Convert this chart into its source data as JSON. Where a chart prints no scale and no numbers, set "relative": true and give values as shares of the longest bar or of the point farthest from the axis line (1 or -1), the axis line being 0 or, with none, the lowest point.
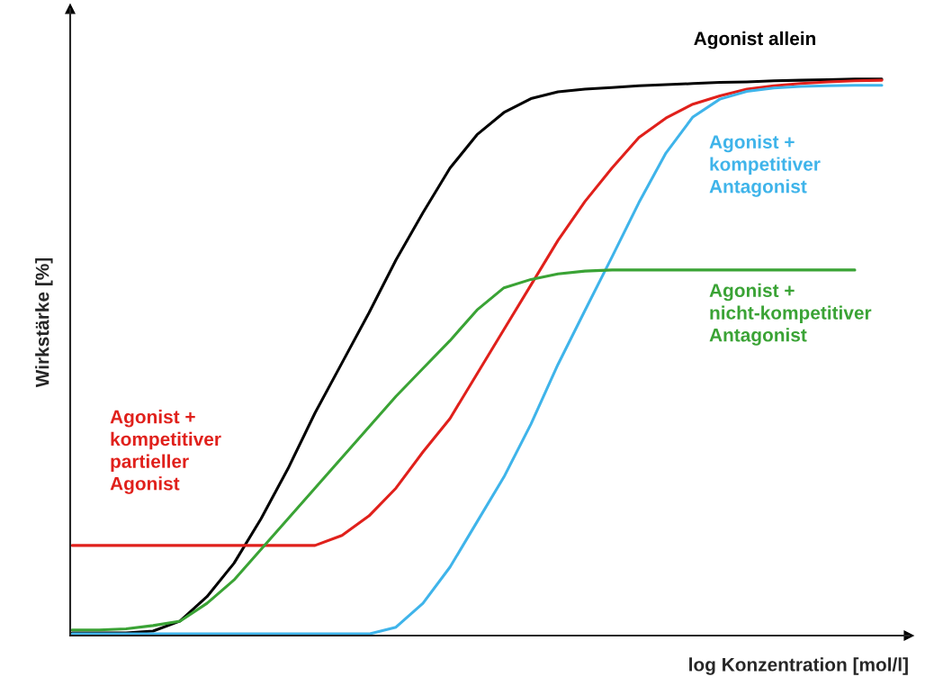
{
  "chart_data": {
    "type": "line",
    "relative": true,
    "xlabel": "log Konzentration [mol/l]",
    "ylabel": "Wirkstärke [%]",
    "categories": [
      null,
      null,
      null,
      null,
      null,
      null,
      null,
      null,
      null,
      null,
      null,
      null,
      null,
      null,
      null,
      null,
      null,
      null,
      null,
      null,
      null,
      null,
      null,
      null,
      null,
      null,
      null,
      null,
      null,
      null,
      null
    ],
    "series": [
      {
        "name": "Agonist allein",
        "color": "#000000",
        "values": [
          0.005,
          0.005,
          0.005,
          0.008,
          0.026,
          0.07,
          0.13,
          0.21,
          0.3,
          0.4,
          0.49,
          0.58,
          0.675,
          0.76,
          0.84,
          0.9,
          0.94,
          0.965,
          0.977,
          0.982,
          0.985,
          0.988,
          0.99,
          0.992,
          0.994,
          0.995,
          0.997,
          0.998,
          0.999,
          1,
          1
        ]
      },
      {
        "name": "Agonist +\nkompetitiver\npartieller\nAgonist",
        "color": "#e0201b",
        "values": [
          0.162,
          0.162,
          0.162,
          0.162,
          0.162,
          0.162,
          0.162,
          0.162,
          0.162,
          0.162,
          0.18,
          0.215,
          0.265,
          0.33,
          0.39,
          0.47,
          0.55,
          0.63,
          0.71,
          0.78,
          0.84,
          0.895,
          0.93,
          0.955,
          0.97,
          0.982,
          0.988,
          0.992,
          0.995,
          0.997,
          0.998
        ]
      },
      {
        "name": "Agonist +\nkompetitiver\nAntagonist",
        "color": "#3fb4ea",
        "values": [
          0.003,
          0.003,
          0.003,
          0.003,
          0.003,
          0.003,
          0.003,
          0.003,
          0.003,
          0.003,
          0.003,
          0.003,
          0.015,
          0.058,
          0.123,
          0.204,
          0.285,
          0.38,
          0.487,
          0.584,
          0.68,
          0.778,
          0.867,
          0.932,
          0.964,
          0.978,
          0.984,
          0.987,
          0.988,
          0.989,
          0.989
        ]
      },
      {
        "name": "Agonist +\nnicht-kompetitiver\nAntagonist",
        "color": "#3aa335",
        "values": [
          0.01,
          0.01,
          0.012,
          0.018,
          0.026,
          0.058,
          0.1,
          0.155,
          0.21,
          0.265,
          0.32,
          0.375,
          0.43,
          0.48,
          0.53,
          0.585,
          0.625,
          0.64,
          0.65,
          0.655,
          0.657,
          0.657,
          0.657,
          0.657,
          0.657,
          0.657,
          0.657,
          0.657,
          0.657,
          0.657,
          null
        ]
      }
    ]
  }
}
